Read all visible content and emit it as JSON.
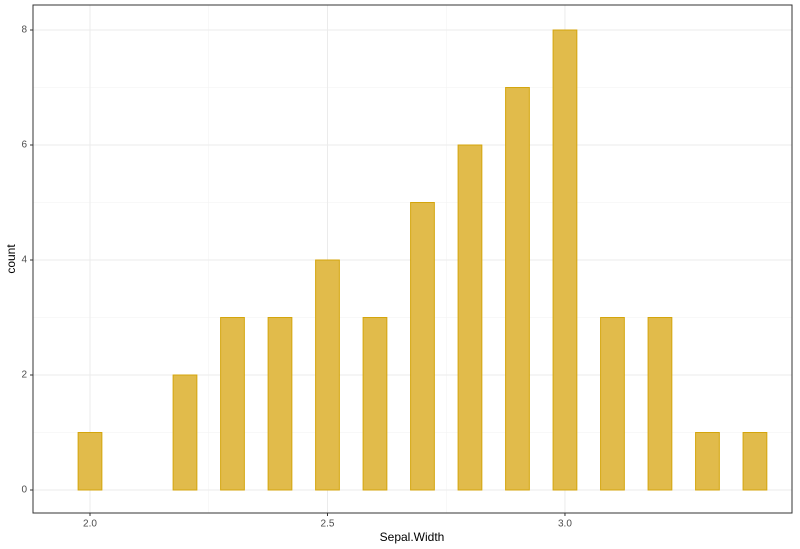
{
  "chart_data": {
    "type": "histogram",
    "x_label": "Sepal.Width",
    "y_label": "count",
    "bins": [
      1.975,
      2.025,
      2.075,
      2.125,
      2.175,
      2.225,
      2.275,
      2.325,
      2.375,
      2.425,
      2.475,
      2.525,
      2.575,
      2.625,
      2.675,
      2.725,
      2.775,
      2.825,
      2.875,
      2.925,
      2.975,
      3.025,
      3.075,
      3.125,
      3.175,
      3.225,
      3.275,
      3.325,
      3.375,
      3.425
    ],
    "values": [
      1,
      0,
      0,
      0,
      2,
      0,
      3,
      0,
      3,
      0,
      4,
      0,
      3,
      0,
      5,
      0,
      6,
      0,
      7,
      0,
      8,
      0,
      3,
      0,
      3,
      0,
      1,
      0,
      1
    ],
    "color": "#e1bb4b",
    "edge_color": "#d4a50c",
    "xlim": [
      1.88,
      3.478
    ],
    "ylim": [
      -0.4,
      8.435
    ],
    "xticks": [
      {
        "value": 2.0,
        "label": "2.0"
      },
      {
        "value": 2.5,
        "label": "2.5"
      },
      {
        "value": 3.0,
        "label": "3.0"
      }
    ],
    "yticks": [
      0,
      2,
      4,
      6,
      8
    ],
    "grid": true
  }
}
